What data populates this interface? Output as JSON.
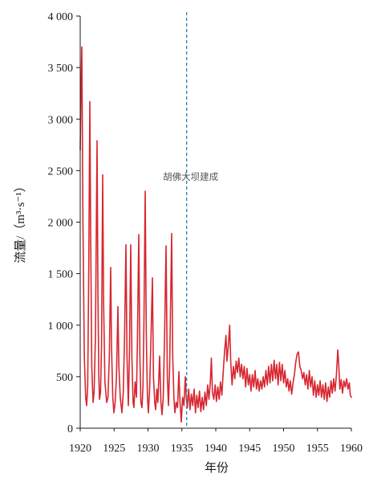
{
  "chart_data": {
    "type": "line",
    "xlabel": "年份",
    "ylabel": "流量/（m³·s⁻¹）",
    "xlim": [
      1920,
      1960
    ],
    "ylim": [
      0,
      4000
    ],
    "xticks": [
      1920,
      1925,
      1930,
      1935,
      1940,
      1945,
      1950,
      1955,
      1960
    ],
    "xtick_labels": [
      "1920",
      "1925",
      "1930",
      "1935",
      "1940",
      "1945",
      "1950",
      "1955",
      "1960"
    ],
    "yticks": [
      0,
      500,
      1000,
      1500,
      2000,
      2500,
      3000,
      3500,
      4000
    ],
    "ytick_labels": [
      "0",
      "500",
      "1 000",
      "1 500",
      "2 000",
      "2 500",
      "3 000",
      "3 500",
      "4 000"
    ],
    "grid": false,
    "legend": "none",
    "vline": {
      "x": 1935.7,
      "label": "胡佛大坝建成",
      "color": "#2b80b5",
      "style": "dashed"
    },
    "series": [
      {
        "color": "#d7262f",
        "points": [
          [
            1920.0,
            2700
          ],
          [
            1920.12,
            3300
          ],
          [
            1920.24,
            3700
          ],
          [
            1920.4,
            2000
          ],
          [
            1920.6,
            700
          ],
          [
            1920.8,
            300
          ],
          [
            1920.95,
            220
          ],
          [
            1921.1,
            400
          ],
          [
            1921.25,
            1500
          ],
          [
            1921.42,
            3170
          ],
          [
            1921.55,
            1800
          ],
          [
            1921.7,
            600
          ],
          [
            1921.89,
            250
          ],
          [
            1922.05,
            350
          ],
          [
            1922.25,
            900
          ],
          [
            1922.49,
            2790
          ],
          [
            1922.62,
            1300
          ],
          [
            1922.75,
            500
          ],
          [
            1922.84,
            280
          ],
          [
            1923.0,
            350
          ],
          [
            1923.15,
            800
          ],
          [
            1923.31,
            2460
          ],
          [
            1923.45,
            1200
          ],
          [
            1923.65,
            450
          ],
          [
            1923.91,
            250
          ],
          [
            1924.1,
            300
          ],
          [
            1924.3,
            700
          ],
          [
            1924.5,
            1560
          ],
          [
            1924.62,
            800
          ],
          [
            1924.8,
            300
          ],
          [
            1924.97,
            150
          ],
          [
            1925.15,
            250
          ],
          [
            1925.35,
            500
          ],
          [
            1925.56,
            1180
          ],
          [
            1925.7,
            600
          ],
          [
            1925.9,
            300
          ],
          [
            1926.15,
            150
          ],
          [
            1926.35,
            350
          ],
          [
            1926.55,
            900
          ],
          [
            1926.75,
            1780
          ],
          [
            1926.9,
            700
          ],
          [
            1927.1,
            220
          ],
          [
            1927.25,
            700
          ],
          [
            1927.46,
            1780
          ],
          [
            1927.62,
            700
          ],
          [
            1927.8,
            250
          ],
          [
            1927.93,
            200
          ],
          [
            1928.1,
            450
          ],
          [
            1928.3,
            300
          ],
          [
            1928.45,
            900
          ],
          [
            1928.64,
            1880
          ],
          [
            1928.8,
            700
          ],
          [
            1928.95,
            250
          ],
          [
            1929.11,
            200
          ],
          [
            1929.25,
            400
          ],
          [
            1929.4,
            1000
          ],
          [
            1929.59,
            2300
          ],
          [
            1929.75,
            900
          ],
          [
            1929.92,
            300
          ],
          [
            1930.06,
            150
          ],
          [
            1930.25,
            400
          ],
          [
            1930.45,
            900
          ],
          [
            1930.65,
            1460
          ],
          [
            1930.8,
            500
          ],
          [
            1931.0,
            250
          ],
          [
            1931.12,
            180
          ],
          [
            1931.3,
            380
          ],
          [
            1931.45,
            250
          ],
          [
            1931.72,
            700
          ],
          [
            1931.9,
            250
          ],
          [
            1932.07,
            130
          ],
          [
            1932.25,
            300
          ],
          [
            1932.45,
            900
          ],
          [
            1932.66,
            1770
          ],
          [
            1932.85,
            500
          ],
          [
            1933.02,
            220
          ],
          [
            1933.2,
            600
          ],
          [
            1933.49,
            1890
          ],
          [
            1933.65,
            700
          ],
          [
            1933.82,
            300
          ],
          [
            1933.96,
            150
          ],
          [
            1934.15,
            250
          ],
          [
            1934.35,
            200
          ],
          [
            1934.56,
            550
          ],
          [
            1934.72,
            250
          ],
          [
            1934.91,
            60
          ],
          [
            1935.1,
            300
          ],
          [
            1935.3,
            220
          ],
          [
            1935.5,
            500
          ],
          [
            1935.65,
            300
          ],
          [
            1935.8,
            200
          ],
          [
            1936.0,
            380
          ],
          [
            1936.2,
            180
          ],
          [
            1936.4,
            330
          ],
          [
            1936.6,
            220
          ],
          [
            1936.8,
            380
          ],
          [
            1937.0,
            150
          ],
          [
            1937.2,
            320
          ],
          [
            1937.4,
            200
          ],
          [
            1937.6,
            360
          ],
          [
            1937.8,
            160
          ],
          [
            1938.0,
            300
          ],
          [
            1938.2,
            180
          ],
          [
            1938.4,
            350
          ],
          [
            1938.6,
            220
          ],
          [
            1938.8,
            420
          ],
          [
            1939.0,
            280
          ],
          [
            1939.2,
            450
          ],
          [
            1939.35,
            680
          ],
          [
            1939.5,
            350
          ],
          [
            1939.7,
            280
          ],
          [
            1939.9,
            420
          ],
          [
            1940.1,
            260
          ],
          [
            1940.3,
            400
          ],
          [
            1940.5,
            280
          ],
          [
            1940.7,
            450
          ],
          [
            1940.9,
            320
          ],
          [
            1941.1,
            550
          ],
          [
            1941.3,
            750
          ],
          [
            1941.5,
            900
          ],
          [
            1941.65,
            650
          ],
          [
            1941.85,
            800
          ],
          [
            1942.05,
            1000
          ],
          [
            1942.2,
            650
          ],
          [
            1942.4,
            420
          ],
          [
            1942.6,
            600
          ],
          [
            1942.8,
            480
          ],
          [
            1943.0,
            650
          ],
          [
            1943.2,
            540
          ],
          [
            1943.4,
            680
          ],
          [
            1943.6,
            500
          ],
          [
            1943.8,
            620
          ],
          [
            1944.0,
            480
          ],
          [
            1944.2,
            600
          ],
          [
            1944.4,
            400
          ],
          [
            1944.6,
            580
          ],
          [
            1944.8,
            420
          ],
          [
            1945.0,
            520
          ],
          [
            1945.2,
            360
          ],
          [
            1945.4,
            520
          ],
          [
            1945.6,
            400
          ],
          [
            1945.8,
            560
          ],
          [
            1946.0,
            380
          ],
          [
            1946.2,
            480
          ],
          [
            1946.4,
            360
          ],
          [
            1946.6,
            460
          ],
          [
            1946.8,
            380
          ],
          [
            1947.0,
            500
          ],
          [
            1947.2,
            400
          ],
          [
            1947.4,
            560
          ],
          [
            1947.6,
            420
          ],
          [
            1947.8,
            600
          ],
          [
            1948.0,
            440
          ],
          [
            1948.2,
            620
          ],
          [
            1948.4,
            460
          ],
          [
            1948.6,
            660
          ],
          [
            1948.8,
            480
          ],
          [
            1949.0,
            620
          ],
          [
            1949.2,
            420
          ],
          [
            1949.4,
            640
          ],
          [
            1949.6,
            460
          ],
          [
            1949.8,
            620
          ],
          [
            1950.0,
            440
          ],
          [
            1950.2,
            560
          ],
          [
            1950.4,
            400
          ],
          [
            1950.6,
            480
          ],
          [
            1950.8,
            360
          ],
          [
            1951.0,
            460
          ],
          [
            1951.2,
            330
          ],
          [
            1951.4,
            440
          ],
          [
            1951.6,
            520
          ],
          [
            1951.8,
            640
          ],
          [
            1952.0,
            720
          ],
          [
            1952.2,
            740
          ],
          [
            1952.4,
            600
          ],
          [
            1952.6,
            560
          ],
          [
            1952.8,
            480
          ],
          [
            1953.0,
            540
          ],
          [
            1953.2,
            420
          ],
          [
            1953.4,
            520
          ],
          [
            1953.6,
            380
          ],
          [
            1953.8,
            560
          ],
          [
            1954.0,
            400
          ],
          [
            1954.2,
            500
          ],
          [
            1954.4,
            320
          ],
          [
            1954.6,
            460
          ],
          [
            1954.8,
            300
          ],
          [
            1955.0,
            420
          ],
          [
            1955.2,
            320
          ],
          [
            1955.4,
            460
          ],
          [
            1955.6,
            300
          ],
          [
            1955.8,
            420
          ],
          [
            1956.0,
            280
          ],
          [
            1956.2,
            440
          ],
          [
            1956.4,
            260
          ],
          [
            1956.6,
            400
          ],
          [
            1956.8,
            300
          ],
          [
            1957.0,
            460
          ],
          [
            1957.2,
            340
          ],
          [
            1957.4,
            480
          ],
          [
            1957.6,
            360
          ],
          [
            1957.8,
            520
          ],
          [
            1958.0,
            760
          ],
          [
            1958.15,
            600
          ],
          [
            1958.3,
            380
          ],
          [
            1958.5,
            470
          ],
          [
            1958.7,
            340
          ],
          [
            1958.9,
            460
          ],
          [
            1959.1,
            400
          ],
          [
            1959.3,
            480
          ],
          [
            1959.5,
            380
          ],
          [
            1959.7,
            440
          ],
          [
            1959.85,
            320
          ],
          [
            1960.0,
            300
          ]
        ]
      }
    ]
  }
}
